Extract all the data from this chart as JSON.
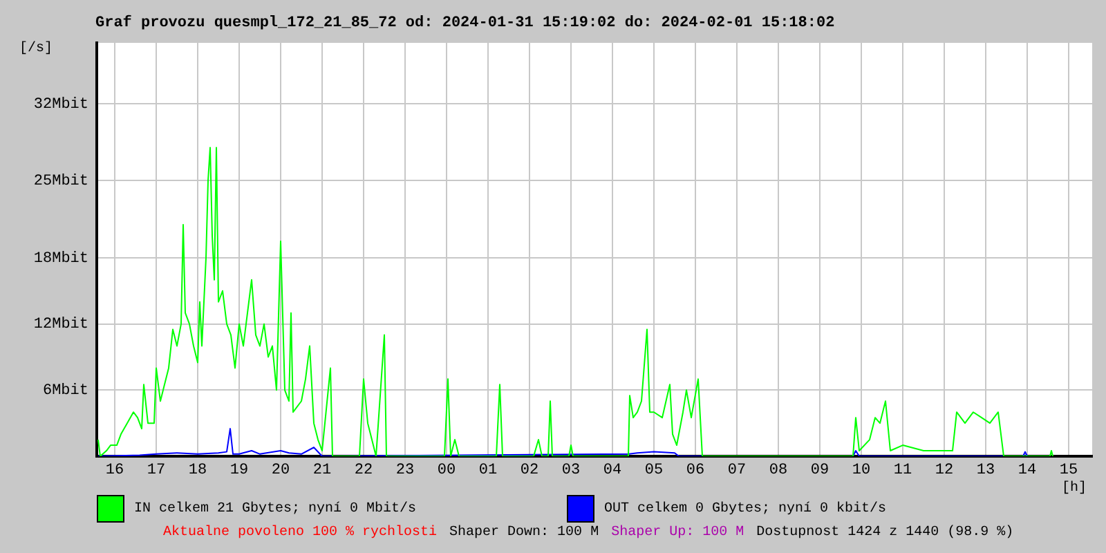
{
  "chart_data": {
    "type": "line",
    "title": "Graf provozu quesmpl_172_21_85_72 od: 2024-01-31 15:19:02 do: 2024-02-01 15:18:02",
    "ylabel": "[/s]",
    "xlabel": "[h]",
    "xlim": [
      "2024-01-31T15:34",
      "2024-02-01T15:34"
    ],
    "xticks": [
      {
        "value": "2024-01-31T16:00",
        "label": "16"
      },
      {
        "value": "2024-01-31T17:00",
        "label": "17"
      },
      {
        "value": "2024-01-31T18:00",
        "label": "18"
      },
      {
        "value": "2024-01-31T19:00",
        "label": "19"
      },
      {
        "value": "2024-01-31T20:00",
        "label": "20"
      },
      {
        "value": "2024-01-31T21:00",
        "label": "21"
      },
      {
        "value": "2024-01-31T22:00",
        "label": "22"
      },
      {
        "value": "2024-01-31T23:00",
        "label": "23"
      },
      {
        "value": "2024-02-01T00:00",
        "label": "00"
      },
      {
        "value": "2024-02-01T01:00",
        "label": "01"
      },
      {
        "value": "2024-02-01T02:00",
        "label": "02"
      },
      {
        "value": "2024-02-01T03:00",
        "label": "03"
      },
      {
        "value": "2024-02-01T04:00",
        "label": "04"
      },
      {
        "value": "2024-02-01T05:00",
        "label": "05"
      },
      {
        "value": "2024-02-01T06:00",
        "label": "06"
      },
      {
        "value": "2024-02-01T07:00",
        "label": "07"
      },
      {
        "value": "2024-02-01T08:00",
        "label": "08"
      },
      {
        "value": "2024-02-01T09:00",
        "label": "09"
      },
      {
        "value": "2024-02-01T10:00",
        "label": "10"
      },
      {
        "value": "2024-02-01T11:00",
        "label": "11"
      },
      {
        "value": "2024-02-01T12:00",
        "label": "12"
      },
      {
        "value": "2024-02-01T13:00",
        "label": "13"
      },
      {
        "value": "2024-02-01T14:00",
        "label": "14"
      },
      {
        "value": "2024-02-01T15:00",
        "label": "15"
      }
    ],
    "ylim": [
      0,
      37.5
    ],
    "yticks": [
      {
        "value": 6,
        "label": "6Mbit"
      },
      {
        "value": 12,
        "label": "12Mbit"
      },
      {
        "value": 18,
        "label": "18Mbit"
      },
      {
        "value": 25,
        "label": "25Mbit"
      },
      {
        "value": 32,
        "label": "32Mbit"
      }
    ],
    "grid": true,
    "legend": "bottom",
    "marker": "none",
    "series": [
      {
        "name": "IN celkem 21 Gbytes; nyní 0 Mbit/s",
        "color": "#00ff00",
        "x": [
          "2024-01-31T15:36",
          "2024-01-31T15:39",
          "2024-01-31T15:48",
          "2024-01-31T15:54",
          "2024-01-31T16:03",
          "2024-01-31T16:09",
          "2024-01-31T16:18",
          "2024-01-31T16:27",
          "2024-01-31T16:33",
          "2024-01-31T16:39",
          "2024-01-31T16:42",
          "2024-01-31T16:48",
          "2024-01-31T16:57",
          "2024-01-31T17:00",
          "2024-01-31T17:06",
          "2024-01-31T17:12",
          "2024-01-31T17:18",
          "2024-01-31T17:24",
          "2024-01-31T17:30",
          "2024-01-31T17:36",
          "2024-01-31T17:39",
          "2024-01-31T17:42",
          "2024-01-31T17:48",
          "2024-01-31T17:54",
          "2024-01-31T18:00",
          "2024-01-31T18:03",
          "2024-01-31T18:06",
          "2024-01-31T18:12",
          "2024-01-31T18:15",
          "2024-01-31T18:18",
          "2024-01-31T18:21",
          "2024-01-31T18:24",
          "2024-01-31T18:27",
          "2024-01-31T18:30",
          "2024-01-31T18:36",
          "2024-01-31T18:42",
          "2024-01-31T18:48",
          "2024-01-31T18:54",
          "2024-01-31T19:00",
          "2024-01-31T19:06",
          "2024-01-31T19:12",
          "2024-01-31T19:18",
          "2024-01-31T19:24",
          "2024-01-31T19:30",
          "2024-01-31T19:36",
          "2024-01-31T19:42",
          "2024-01-31T19:48",
          "2024-01-31T19:54",
          "2024-01-31T20:00",
          "2024-01-31T20:06",
          "2024-01-31T20:12",
          "2024-01-31T20:15",
          "2024-01-31T20:18",
          "2024-01-31T20:30",
          "2024-01-31T20:36",
          "2024-01-31T20:42",
          "2024-01-31T20:48",
          "2024-01-31T20:54",
          "2024-01-31T21:00",
          "2024-01-31T21:12",
          "2024-01-31T21:15",
          "2024-01-31T21:54",
          "2024-01-31T22:00",
          "2024-01-31T22:06",
          "2024-01-31T22:12",
          "2024-01-31T22:18",
          "2024-01-31T22:30",
          "2024-01-31T22:33",
          "2024-01-31T23:57",
          "2024-02-01T00:02",
          "2024-02-01T00:06",
          "2024-02-01T00:12",
          "2024-02-01T00:18",
          "2024-02-01T01:12",
          "2024-02-01T01:17",
          "2024-02-01T01:21",
          "2024-02-01T02:06",
          "2024-02-01T02:13",
          "2024-02-01T02:18",
          "2024-02-01T02:27",
          "2024-02-01T02:30",
          "2024-02-01T02:33",
          "2024-02-01T02:57",
          "2024-02-01T03:00",
          "2024-02-01T03:03",
          "2024-02-01T04:23",
          "2024-02-01T04:25",
          "2024-02-01T04:30",
          "2024-02-01T04:36",
          "2024-02-01T04:42",
          "2024-02-01T04:50",
          "2024-02-01T04:54",
          "2024-02-01T05:00",
          "2024-02-01T05:12",
          "2024-02-01T05:23",
          "2024-02-01T05:27",
          "2024-02-01T05:33",
          "2024-02-01T05:42",
          "2024-02-01T05:47",
          "2024-02-01T05:54",
          "2024-02-01T06:04",
          "2024-02-01T06:10",
          "2024-02-01T06:12",
          "2024-02-01T09:48",
          "2024-02-01T09:52",
          "2024-02-01T09:57",
          "2024-02-01T10:12",
          "2024-02-01T10:20",
          "2024-02-01T10:27",
          "2024-02-01T10:35",
          "2024-02-01T10:42",
          "2024-02-01T11:00",
          "2024-02-01T11:30",
          "2024-02-01T12:00",
          "2024-02-01T12:12",
          "2024-02-01T12:18",
          "2024-02-01T12:30",
          "2024-02-01T12:42",
          "2024-02-01T12:54",
          "2024-02-01T13:06",
          "2024-02-01T13:18",
          "2024-02-01T13:26",
          "2024-02-01T13:30",
          "2024-02-01T14:33",
          "2024-02-01T14:35",
          "2024-02-01T14:37"
        ],
        "values": [
          1.5,
          0,
          0.5,
          1,
          1,
          2,
          3,
          4,
          3.5,
          2.5,
          6.5,
          3,
          3,
          8,
          5,
          6.5,
          8,
          11.5,
          10,
          12,
          21,
          13,
          12,
          10,
          8.5,
          14,
          10,
          18,
          25,
          28,
          20,
          16,
          28,
          14,
          15,
          12,
          11,
          8,
          12,
          10,
          13,
          16,
          11,
          10,
          12,
          9,
          10,
          6,
          19.5,
          6,
          5,
          13,
          4,
          5,
          7,
          10,
          3,
          1.5,
          0.5,
          8,
          0,
          0,
          7,
          3,
          1.5,
          0,
          11,
          0,
          0,
          7,
          0,
          1.5,
          0,
          0,
          6.5,
          0,
          0,
          1.5,
          0,
          0,
          5,
          0,
          0,
          1,
          0,
          0,
          5.5,
          3.5,
          4,
          5,
          11.5,
          4,
          4,
          3.5,
          6.5,
          2,
          1,
          4,
          6,
          3.5,
          7,
          0,
          0,
          0,
          3.5,
          0.5,
          1.5,
          3.5,
          3,
          5,
          0.5,
          1,
          0.5,
          0.5,
          0.5,
          4,
          3,
          4,
          3.5,
          3,
          4,
          0,
          0,
          0,
          0.5,
          0
        ]
      },
      {
        "name": "OUT celkem 0 Gbytes; nyní 0 kbit/s",
        "color": "#0000ff",
        "x": [
          "2024-01-31T15:36",
          "2024-01-31T16:36",
          "2024-01-31T17:00",
          "2024-01-31T17:30",
          "2024-01-31T18:00",
          "2024-01-31T18:30",
          "2024-01-31T18:42",
          "2024-01-31T18:47",
          "2024-01-31T18:51",
          "2024-01-31T19:00",
          "2024-01-31T19:18",
          "2024-01-31T19:30",
          "2024-01-31T20:00",
          "2024-01-31T20:12",
          "2024-01-31T20:30",
          "2024-01-31T20:48",
          "2024-01-31T21:00",
          "2024-02-01T04:24",
          "2024-02-01T04:36",
          "2024-02-01T05:00",
          "2024-02-01T05:30",
          "2024-02-01T05:36",
          "2024-02-01T09:48",
          "2024-02-01T09:52",
          "2024-02-01T09:57",
          "2024-02-01T13:54",
          "2024-02-01T13:57",
          "2024-02-01T14:00"
        ],
        "values": [
          0,
          0.1,
          0.2,
          0.3,
          0.2,
          0.3,
          0.4,
          2.5,
          0.2,
          0.2,
          0.5,
          0.2,
          0.5,
          0.3,
          0.2,
          0.8,
          0,
          0.2,
          0.3,
          0.4,
          0.3,
          0,
          0,
          0.5,
          0,
          0,
          0.4,
          0
        ]
      }
    ],
    "annotations": [
      "Aktualne povoleno 100 % rychlosti",
      "Shaper Down: 100 M",
      "Shaper Up: 100 M",
      "Dostupnost 1424 z 1440 (98.9 %)"
    ]
  }
}
